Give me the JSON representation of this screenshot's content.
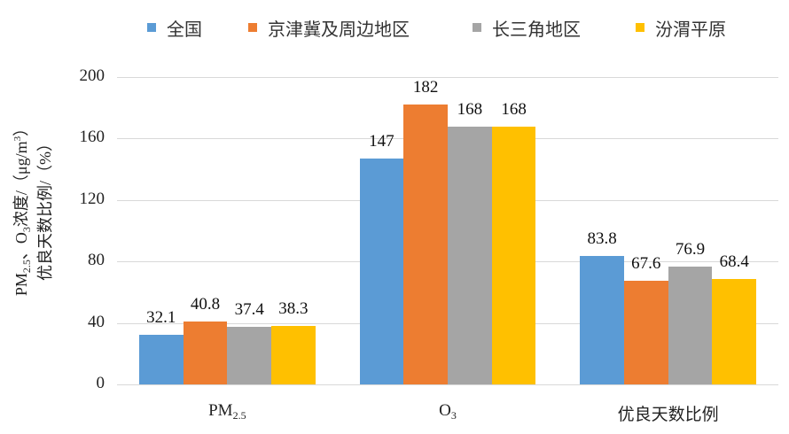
{
  "chart_data": {
    "type": "bar",
    "title": "",
    "xlabel": "",
    "ylabel": "PM2.5、O3浓度/（μg/m³）优良天数比例/（%）",
    "ylabel_lines": [
      "PM2.5、O3浓度/（μg/m3）",
      "优良天数比例/（%）"
    ],
    "categories": [
      "PM2.5",
      "O3",
      "优良天数比例"
    ],
    "category_display": [
      {
        "main": "PM",
        "sub": "2.5"
      },
      {
        "main": "O",
        "sub": "3"
      },
      {
        "main": "优良天数比例",
        "sub": ""
      }
    ],
    "series": [
      {
        "name": "全国",
        "color": "#5B9BD5",
        "values": [
          32.1,
          147,
          83.8
        ],
        "labels": [
          "32.1",
          "147",
          "83.8"
        ]
      },
      {
        "name": "京津冀及周边地区",
        "color": "#ED7D31",
        "values": [
          40.8,
          182,
          67.6
        ],
        "labels": [
          "40.8",
          "182",
          "67.6"
        ]
      },
      {
        "name": "长三角地区",
        "color": "#A5A5A5",
        "values": [
          37.4,
          168,
          76.9
        ],
        "labels": [
          "37.4",
          "168",
          "76.9"
        ]
      },
      {
        "name": "汾渭平原",
        "color": "#FFC000",
        "values": [
          38.3,
          168,
          68.4
        ],
        "labels": [
          "38.3",
          "168",
          "68.4"
        ]
      }
    ],
    "ylim": [
      0,
      200
    ],
    "yticks": [
      0,
      40,
      80,
      120,
      160,
      200
    ],
    "grid": true,
    "legend_position": "top"
  }
}
